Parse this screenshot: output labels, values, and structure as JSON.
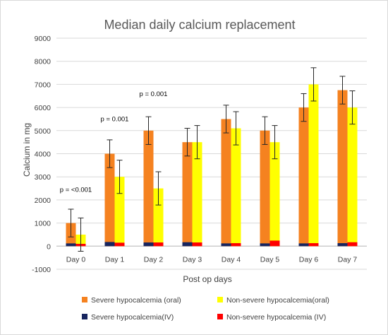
{
  "chart_data": {
    "type": "bar",
    "title": "Median daily calcium replacement",
    "xlabel": "Post op days",
    "ylabel": "Calcium in mg",
    "ylim": [
      -1000,
      9000
    ],
    "yticks": [
      -1000,
      0,
      1000,
      2000,
      3000,
      4000,
      5000,
      6000,
      7000,
      8000,
      9000
    ],
    "grid": true,
    "legend_position": "bottom",
    "categories": [
      "Day 0",
      "Day 1",
      "Day 2",
      "Day 3",
      "Day 4",
      "Day 5",
      "Day 6",
      "Day 7"
    ],
    "series": [
      {
        "name": "Severe hypocalcemia (oral)",
        "color": "#F58220",
        "values": [
          1000,
          4000,
          5000,
          4500,
          5500,
          5000,
          6000,
          6750
        ],
        "errors": [
          600,
          600,
          600,
          600,
          600,
          600,
          600,
          600
        ]
      },
      {
        "name": "Non-severe hypocalcemia(oral)",
        "color": "#FFFF00",
        "values": [
          500,
          3000,
          2500,
          4500,
          5100,
          4500,
          7000,
          6000
        ],
        "errors": [
          720,
          720,
          720,
          720,
          720,
          720,
          720,
          720
        ]
      },
      {
        "name": "Severe hypocalcemia(IV)",
        "color": "#17255F",
        "values": [
          120,
          180,
          160,
          170,
          120,
          120,
          120,
          130
        ]
      },
      {
        "name": "Non-severe hypocalcemia (IV)",
        "color": "#FF0000",
        "values": [
          100,
          150,
          160,
          160,
          130,
          240,
          130,
          170
        ]
      }
    ],
    "annotations": [
      {
        "text": "p = <0.001",
        "category": "Day 0",
        "y": 2350
      },
      {
        "text": "p = 0.001",
        "category": "Day 1",
        "y": 5400
      },
      {
        "text": "p = 0.001",
        "category": "Day 2",
        "y": 6500
      }
    ]
  }
}
